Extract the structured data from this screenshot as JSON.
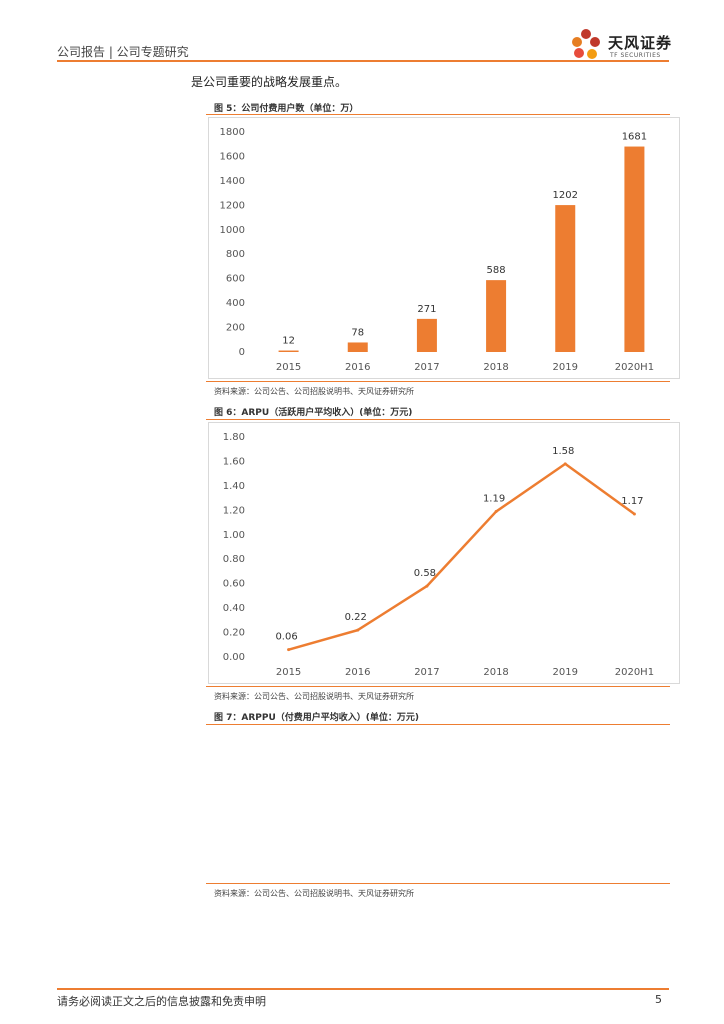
{
  "header": {
    "left_text": "公司报告 | 公司专题研究",
    "logo_cn": "天风证券",
    "logo_en": "TF SECURITIES"
  },
  "intro_text": "是公司重要的战略发展重点。",
  "colors": {
    "accent": "#ed7d31",
    "rule": "#ed7d31"
  },
  "figure5": {
    "title": "图 5：公司付费用户数（单位：万）",
    "source": "资料来源：公司公告、公司招股说明书、天风证券研究所"
  },
  "figure6": {
    "title": "图 6：ARPU（活跃用户平均收入）(单位：万元)",
    "source": "资料来源：公司公告、公司招股说明书、天风证券研究所"
  },
  "figure7": {
    "title": "图 7：ARPPU（付费用户平均收入）(单位：万元)",
    "source": "资料来源：公司公告、公司招股说明书、天风证券研究所"
  },
  "footer": {
    "disclaimer": "请务必阅读正文之后的信息披露和免责申明",
    "page_number": "5"
  },
  "chart_data": [
    {
      "type": "bar",
      "title": "公司付费用户数（单位：万）",
      "categories": [
        "2015",
        "2016",
        "2017",
        "2018",
        "2019",
        "2020H1"
      ],
      "values": [
        12,
        78,
        271,
        588,
        1202,
        1681
      ],
      "data_labels": [
        "12",
        "78",
        "271",
        "588",
        "1202",
        "1681"
      ],
      "yticks": [
        "0",
        "200",
        "400",
        "600",
        "800",
        "1000",
        "1200",
        "1400",
        "1600",
        "1800"
      ],
      "ylim": [
        0,
        1800
      ],
      "color": "#ed7d31",
      "grid": false
    },
    {
      "type": "line",
      "title": "ARPU（活跃用户平均收入）(单位：万元)",
      "categories": [
        "2015",
        "2016",
        "2017",
        "2018",
        "2019",
        "2020H1"
      ],
      "values": [
        0.06,
        0.22,
        0.58,
        1.19,
        1.58,
        1.17
      ],
      "data_labels": [
        "0.06",
        "0.22",
        "0.58",
        "1.19",
        "1.58",
        "1.17"
      ],
      "yticks": [
        "0.00",
        "0.20",
        "0.40",
        "0.60",
        "0.80",
        "1.00",
        "1.20",
        "1.40",
        "1.60",
        "1.80"
      ],
      "ylim": [
        0,
        1.8
      ],
      "color": "#ed7d31",
      "grid": false
    }
  ]
}
